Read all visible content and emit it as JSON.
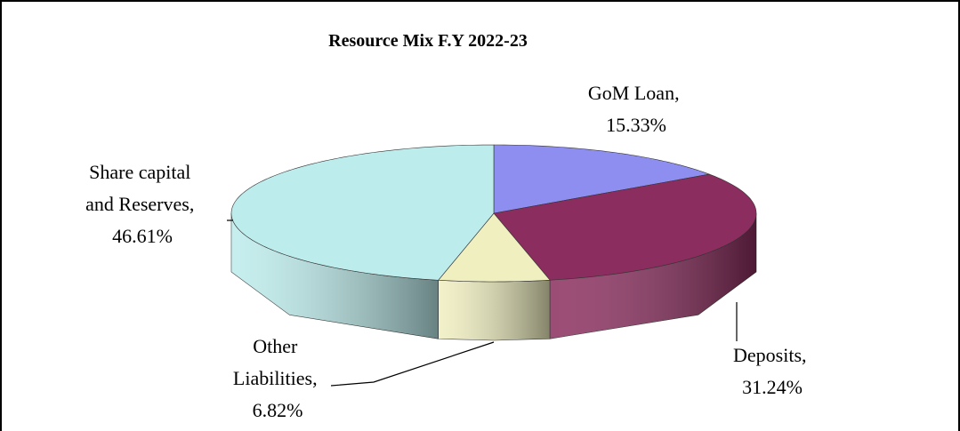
{
  "chart_data": {
    "type": "pie",
    "title": "Resource Mix F.Y 2022-23",
    "labels": [
      "GoM Loan, 15.33%",
      "Deposits, 31.24%",
      "Other Liabilities, 6.82%",
      "Share capital and Reserves, 46.61%"
    ],
    "values": [
      15.33,
      31.24,
      6.82,
      46.61
    ],
    "colors": [
      "#8e8ef0",
      "#8b2d5e",
      "#f0efc0",
      "#bdecec"
    ],
    "three_d": true
  }
}
